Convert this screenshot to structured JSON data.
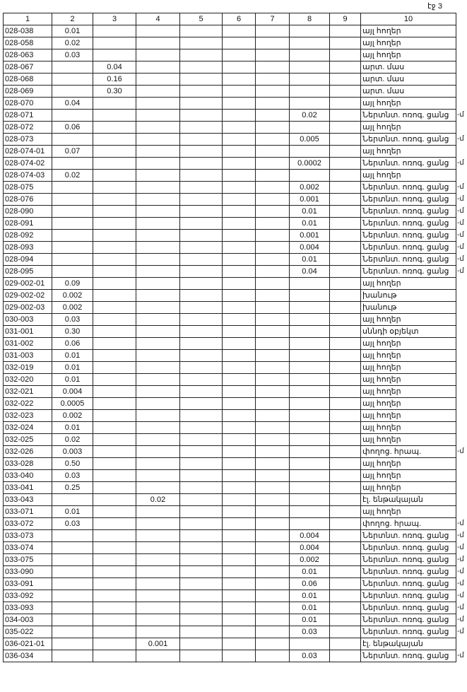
{
  "page_label": "էջ 3",
  "table": {
    "header": [
      "1",
      "2",
      "3",
      "4",
      "5",
      "6",
      "7",
      "8",
      "9",
      "10"
    ],
    "rows": [
      {
        "1": "028-038",
        "2": "0.01",
        "10": "այլ հողեր"
      },
      {
        "1": "028-058",
        "2": "0.02",
        "10": "այլ հողեր"
      },
      {
        "1": "028-063",
        "2": "0.03",
        "10": "այլ հողեր"
      },
      {
        "1": "028-067",
        "3": "0.04",
        "10": "արտ. մաս"
      },
      {
        "1": "028-068",
        "3": "0.16",
        "10": "արտ. մաս"
      },
      {
        "1": "028-069",
        "3": "0.30",
        "10": "արտ. մաս"
      },
      {
        "1": "028-070",
        "2": "0.04",
        "10": "այլ հողեր"
      },
      {
        "1": "028-071",
        "8": "0.02",
        "10": "Ներտնտ. ոռոգ. ցանց",
        "mark": "-մ"
      },
      {
        "1": "028-072",
        "2": "0.06",
        "10": "այլ հողեր"
      },
      {
        "1": "028-073",
        "8": "0.005",
        "10": "Ներտնտ. ոռոգ. ցանց",
        "mark": "-մ"
      },
      {
        "1": "028-074-01",
        "2": "0.07",
        "10": "այլ հողեր"
      },
      {
        "1": "028-074-02",
        "8": "0.0002",
        "10": "Ներտնտ. ոռոգ. ցանց",
        "mark": "-մ"
      },
      {
        "1": "028-074-03",
        "2": "0.02",
        "10": "այլ հողեր"
      },
      {
        "1": "028-075",
        "8": "0.002",
        "10": "Ներտնտ. ոռոգ. ցանց",
        "mark": "-մ"
      },
      {
        "1": "028-076",
        "8": "0.001",
        "10": "Ներտնտ. ոռոգ. ցանց",
        "mark": "-մ"
      },
      {
        "1": "028-090",
        "8": "0.01",
        "10": "Ներտնտ. ոռոգ. ցանց",
        "mark": "-մ"
      },
      {
        "1": "028-091",
        "8": "0.01",
        "10": "Ներտնտ. ոռոգ. ցանց",
        "mark": "-մ"
      },
      {
        "1": "028-092",
        "8": "0.001",
        "10": "Ներտնտ. ոռոգ. ցանց",
        "mark": "-մ"
      },
      {
        "1": "028-093",
        "8": "0.004",
        "10": "Ներտնտ. ոռոգ. ցանց",
        "mark": "-մ"
      },
      {
        "1": "028-094",
        "8": "0.01",
        "10": "Ներտնտ. ոռոգ. ցանց",
        "mark": "-մ"
      },
      {
        "1": "028-095",
        "8": "0.04",
        "10": "Ներտնտ. ոռոգ. ցանց",
        "mark": "-մ"
      },
      {
        "1": "029-002-01",
        "2": "0.09",
        "10": "այլ հողեր"
      },
      {
        "1": "029-002-02",
        "2": "0.002",
        "10": "խանութ"
      },
      {
        "1": "029-002-03",
        "2": "0.002",
        "10": "խանութ"
      },
      {
        "1": "030-003",
        "2": "0.03",
        "10": "այլ հողեր"
      },
      {
        "1": "031-001",
        "2": "0.30",
        "10": "սննդի օբյեկտ"
      },
      {
        "1": "031-002",
        "2": "0.06",
        "10": "այլ հողեր"
      },
      {
        "1": "031-003",
        "2": "0.01",
        "10": "այլ հողեր"
      },
      {
        "1": "032-019",
        "2": "0.01",
        "10": "այլ հողեր"
      },
      {
        "1": "032-020",
        "2": "0.01",
        "10": "այլ հողեր"
      },
      {
        "1": "032-021",
        "2": "0.004",
        "10": "այլ հողեր"
      },
      {
        "1": "032-022",
        "2": "0.0005",
        "10": "այլ հողեր"
      },
      {
        "1": "032-023",
        "2": "0.002",
        "10": "այլ հողեր"
      },
      {
        "1": "032-024",
        "2": "0.01",
        "10": "այլ հողեր"
      },
      {
        "1": "032-025",
        "2": "0.02",
        "10": "այլ հողեր"
      },
      {
        "1": "032-026",
        "2": "0.003",
        "10": "փողոց. հրապ.",
        "mark": "-մ"
      },
      {
        "1": "033-028",
        "2": "0.50",
        "10": "այլ հողեր"
      },
      {
        "1": "033-040",
        "2": "0.03",
        "10": "այլ հողեր"
      },
      {
        "1": "033-041",
        "2": "0.25",
        "10": "այլ հողեր"
      },
      {
        "1": "033-043",
        "4": "0.02",
        "10": "էլ. ենթակայան"
      },
      {
        "1": "033-071",
        "2": "0.01",
        "10": "այլ հողեր"
      },
      {
        "1": "033-072",
        "2": "0.03",
        "10": "փողոց. հրապ.",
        "mark": "-մ"
      },
      {
        "1": "033-073",
        "8": "0.004",
        "10": "Ներտնտ. ոռոգ. ցանց",
        "mark": "-մ"
      },
      {
        "1": "033-074",
        "8": "0.004",
        "10": "Ներտնտ. ոռոգ. ցանց",
        "mark": "-մ"
      },
      {
        "1": "033-075",
        "8": "0.002",
        "10": "Ներտնտ. ոռոգ. ցանց",
        "mark": "-մ"
      },
      {
        "1": "033-090",
        "8": "0.01",
        "10": "Ներտնտ. ոռոգ. ցանց",
        "mark": "-մ"
      },
      {
        "1": "033-091",
        "8": "0.06",
        "10": "Ներտնտ. ոռոգ. ցանց",
        "mark": "-մ"
      },
      {
        "1": "033-092",
        "8": "0.01",
        "10": "Ներտնտ. ոռոգ. ցանց",
        "mark": "-մ"
      },
      {
        "1": "033-093",
        "8": "0.01",
        "10": "Ներտնտ. ոռոգ. ցանց",
        "mark": "-մ"
      },
      {
        "1": "034-003",
        "8": "0.01",
        "10": "Ներտնտ. ոռոգ. ցանց",
        "mark": "-մ"
      },
      {
        "1": "035-022",
        "8": "0.03",
        "10": "Ներտնտ. ոռոգ. ցանց",
        "mark": "-մ"
      },
      {
        "1": "036-021-01",
        "4": "0.001",
        "10": "էլ. ենթակայան"
      },
      {
        "1": "036-034",
        "8": "0.03",
        "10": "Ներտնտ. ոռոգ. ցանց",
        "mark": "-մ"
      }
    ]
  }
}
